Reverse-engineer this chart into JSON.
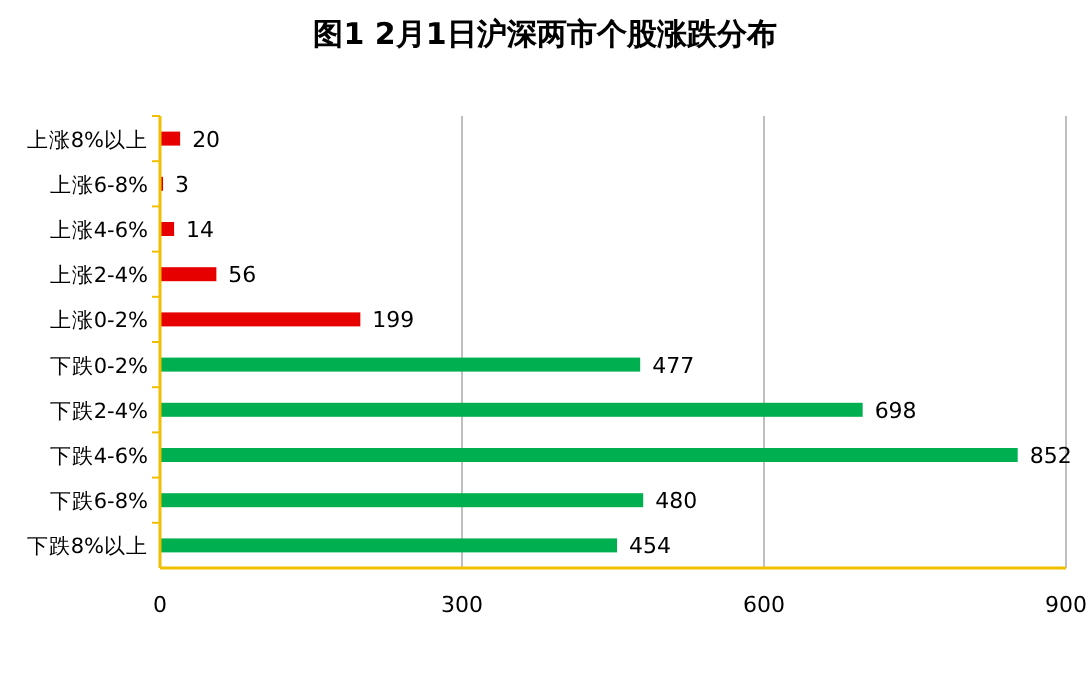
{
  "chart_data": {
    "type": "bar",
    "orientation": "horizontal",
    "title": "图1  2月1日沪深两市个股涨跌分布",
    "categories": [
      "上涨8%以上",
      "上涨6-8%",
      "上涨4-6%",
      "上涨2-4%",
      "上涨0-2%",
      "下跌0-2%",
      "下跌2-4%",
      "下跌4-6%",
      "下跌6-8%",
      "下跌8%以上"
    ],
    "values": [
      20,
      3,
      14,
      56,
      199,
      477,
      698,
      852,
      480,
      454
    ],
    "colors": [
      "#e60000",
      "#e60000",
      "#e60000",
      "#e60000",
      "#e60000",
      "#00b050",
      "#00b050",
      "#00b050",
      "#00b050",
      "#00b050"
    ],
    "xlim": [
      0,
      900
    ],
    "xticks": [
      0,
      300,
      600,
      900
    ],
    "grid": "x",
    "data_labels": true
  }
}
